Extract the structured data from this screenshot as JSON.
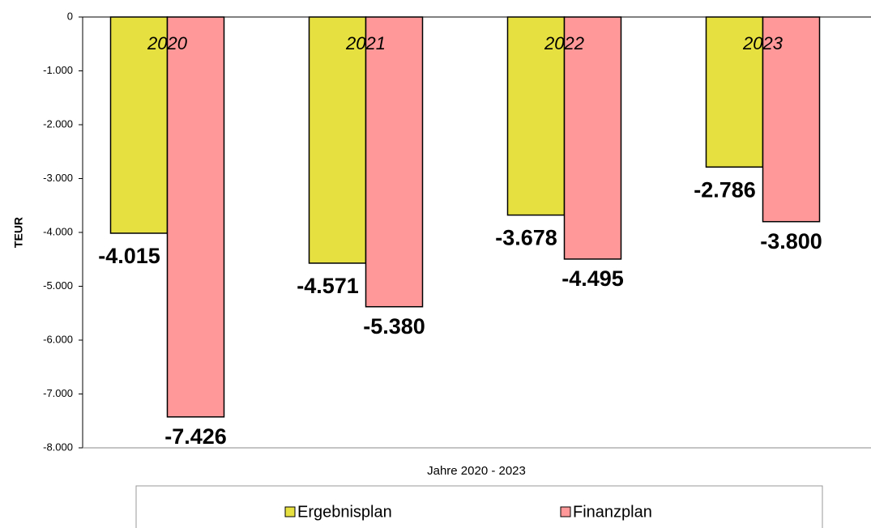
{
  "chart_data": {
    "type": "bar",
    "categories": [
      "2020",
      "2021",
      "2022",
      "2023"
    ],
    "series": [
      {
        "name": "Ergebnisplan",
        "color": "#e6e040",
        "values": [
          -4015,
          -4571,
          -3678,
          -2786
        ],
        "value_labels": [
          "-4.015",
          "-4.571",
          "-3.678",
          "-2.786"
        ]
      },
      {
        "name": "Finanzplan",
        "color": "#ff9999",
        "values": [
          -7426,
          -5380,
          -4495,
          -3800
        ],
        "value_labels": [
          "-7.426",
          "-5.380",
          "-4.495",
          "-3.800"
        ]
      }
    ],
    "ylim": [
      -8000,
      0
    ],
    "yticks": [
      0,
      {
        "value": -1000,
        "label": "-1.000"
      },
      {
        "value": -2000,
        "label": "-2.000"
      },
      {
        "value": -3000,
        "label": "-3.000"
      },
      {
        "value": -4000,
        "label": "-4.000"
      },
      {
        "value": -5000,
        "label": "-5.000"
      },
      {
        "value": -6000,
        "label": "-6.000"
      },
      {
        "value": -7000,
        "label": "-7.000"
      },
      {
        "value": -8000,
        "label": "-8.000"
      }
    ],
    "y_label": "TEUR",
    "x_label": "Jahre 2020 - 2023",
    "legend": "bottom"
  }
}
